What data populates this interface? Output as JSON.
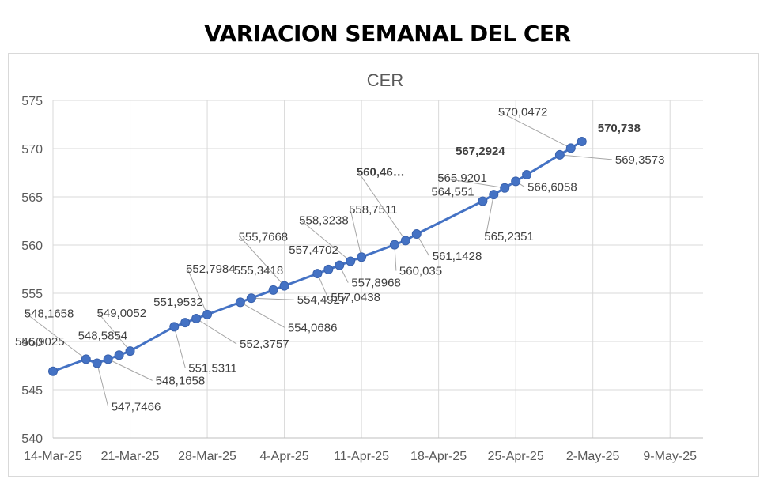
{
  "header": {
    "title": "VARIACION SEMANAL DEL CER"
  },
  "chart_data": {
    "type": "line",
    "title": "CER",
    "xlabel": "",
    "ylabel": "",
    "x_ticks": [
      "14-Mar-25",
      "21-Mar-25",
      "28-Mar-25",
      "4-Apr-25",
      "11-Apr-25",
      "18-Apr-25",
      "25-Apr-25",
      "2-May-25",
      "9-May-25"
    ],
    "y_ticks": [
      540,
      545,
      550,
      555,
      560,
      565,
      570,
      575
    ],
    "xlim": [
      "2025-03-14",
      "2025-05-12"
    ],
    "ylim": [
      540,
      575
    ],
    "grid": "horizontal",
    "legend": "none",
    "series_color": "#4472c4",
    "series": [
      {
        "points": [
          {
            "x": "2025-03-14",
            "y": 546.9025,
            "label": "546,9025"
          },
          {
            "x": "2025-03-17",
            "y": 548.1658,
            "label": "548,1658"
          },
          {
            "x": "2025-03-18",
            "y": 547.7466,
            "label": "547,7466"
          },
          {
            "x": "2025-03-19",
            "y": 548.1658,
            "label": "548,1658"
          },
          {
            "x": "2025-03-20",
            "y": 548.5854,
            "label": "548,5854"
          },
          {
            "x": "2025-03-21",
            "y": 549.0052,
            "label": "549,0052"
          },
          {
            "x": "2025-03-25",
            "y": 551.5311,
            "label": "551,5311"
          },
          {
            "x": "2025-03-26",
            "y": 551.9532,
            "label": "551,9532"
          },
          {
            "x": "2025-03-27",
            "y": 552.3757,
            "label": "552,3757"
          },
          {
            "x": "2025-03-28",
            "y": 552.7984,
            "label": "552,7984"
          },
          {
            "x": "2025-03-31",
            "y": 554.0686,
            "label": "554,0686"
          },
          {
            "x": "2025-04-01",
            "y": 554.4927,
            "label": "554,4927"
          },
          {
            "x": "2025-04-03",
            "y": 555.3418,
            "label": "555,3418"
          },
          {
            "x": "2025-04-04",
            "y": 555.7668,
            "label": "555,7668"
          },
          {
            "x": "2025-04-07",
            "y": 557.0438,
            "label": "557,0438"
          },
          {
            "x": "2025-04-08",
            "y": 557.4702,
            "label": "557,4702"
          },
          {
            "x": "2025-04-09",
            "y": 557.8968,
            "label": "557,8968"
          },
          {
            "x": "2025-04-10",
            "y": 558.3238,
            "label": "558,3238"
          },
          {
            "x": "2025-04-11",
            "y": 558.7511,
            "label": "558,7511"
          },
          {
            "x": "2025-04-14",
            "y": 560.035,
            "label": "560,035"
          },
          {
            "x": "2025-04-15",
            "y": 560.4636,
            "label": "560,46…"
          },
          {
            "x": "2025-04-16",
            "y": 561.1428,
            "label": "561,1428"
          },
          {
            "x": "2025-04-22",
            "y": 564.551,
            "label": "564,551"
          },
          {
            "x": "2025-04-23",
            "y": 565.2351,
            "label": "565,2351"
          },
          {
            "x": "2025-04-24",
            "y": 565.9201,
            "label": "565,9201"
          },
          {
            "x": "2025-04-25",
            "y": 566.6058,
            "label": "566,6058"
          },
          {
            "x": "2025-04-26",
            "y": 567.2924,
            "label": "567,2924"
          },
          {
            "x": "2025-04-29",
            "y": 569.3573,
            "label": "569,3573"
          },
          {
            "x": "2025-04-30",
            "y": 570.0472,
            "label": "570,0472"
          },
          {
            "x": "2025-05-01",
            "y": 570.738,
            "label": "570,738"
          }
        ]
      }
    ]
  }
}
